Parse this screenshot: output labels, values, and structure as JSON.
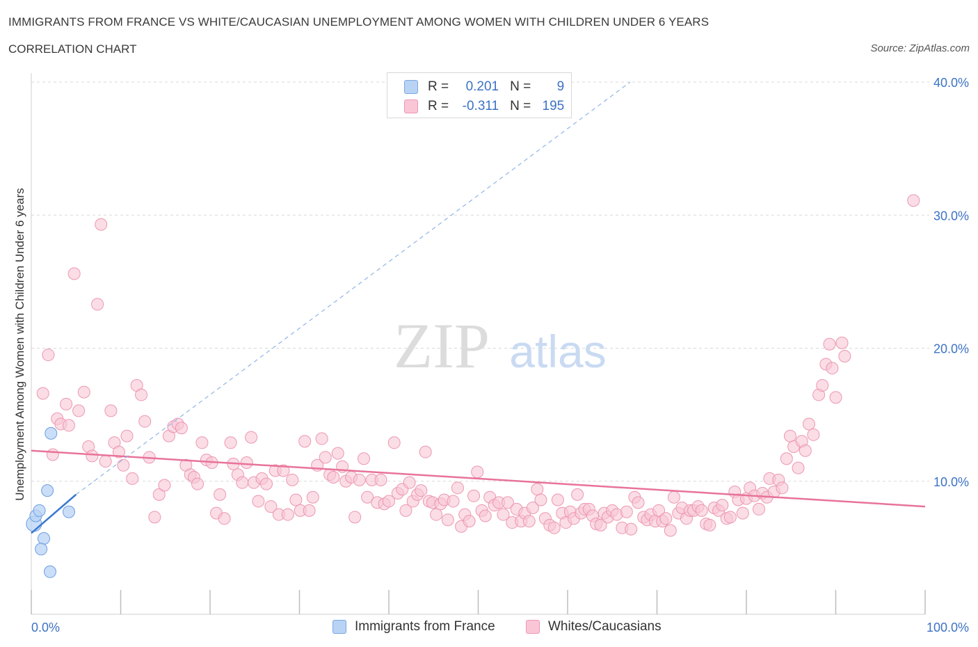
{
  "title": "IMMIGRANTS FROM FRANCE VS WHITE/CAUCASIAN UNEMPLOYMENT AMONG WOMEN WITH CHILDREN UNDER 6 YEARS",
  "subtitle": "CORRELATION CHART",
  "source": "Source: ZipAtlas.com",
  "watermark": {
    "zip": "ZIP",
    "atlas": "atlas"
  },
  "legend": {
    "rows": [
      {
        "r_label": "R =",
        "r_value": "0.201",
        "n_label": "N =",
        "n_value": "9"
      },
      {
        "r_label": "R =",
        "r_value": "-0.311",
        "n_label": "N =",
        "n_value": "195"
      }
    ]
  },
  "bottom_legend": {
    "items": [
      {
        "label": "Immigrants from France"
      },
      {
        "label": "Whites/Caucasians"
      }
    ]
  },
  "colors": {
    "blue_fill": "#b9d3f5",
    "blue_stroke": "#6a9ee0",
    "blue_line": "#3a78d0",
    "pink_fill": "#f9c6d6",
    "pink_stroke": "#ec97b2",
    "pink_line": "#e8739a",
    "grid": "#d9d9d9",
    "axis_label": "#3c72c4"
  },
  "chart_data": {
    "type": "scatter",
    "title": "IMMIGRANTS FROM FRANCE VS WHITE/CAUCASIAN UNEMPLOYMENT AMONG WOMEN WITH CHILDREN UNDER 6 YEARS",
    "xlabel": "",
    "ylabel": "Unemployment Among Women with Children Under 6 years",
    "xlim": [
      0,
      100
    ],
    "ylim": [
      0,
      40
    ],
    "x_tick_labels": [
      "0.0%",
      "100.0%"
    ],
    "y_ticks": [
      10,
      20,
      30,
      40
    ],
    "y_tick_labels": [
      "10.0%",
      "20.0%",
      "30.0%",
      "40.0%"
    ],
    "grid": true,
    "legend_position": "top-center",
    "series": [
      {
        "name": "Immigrants from France",
        "color": "#b9d3f5",
        "points": [
          [
            0.3,
            6.8
          ],
          [
            0.5,
            7.4
          ],
          [
            0.9,
            7.8
          ],
          [
            2.2,
            13.6
          ],
          [
            1.8,
            9.3
          ],
          [
            4.2,
            7.7
          ],
          [
            1.4,
            5.7
          ],
          [
            1.1,
            4.9
          ],
          [
            2.1,
            3.2
          ]
        ],
        "trend": {
          "x0": 0,
          "y0": 6.1,
          "x1": 5,
          "y1": 9.0,
          "style": "solid"
        },
        "trend_extension": {
          "x0": 5,
          "y0": 9.0,
          "x1": 67,
          "y1": 40.0,
          "style": "dashed"
        }
      },
      {
        "name": "Whites/Caucasians",
        "color": "#f9c6d6",
        "points": [
          [
            1.3,
            16.6
          ],
          [
            1.9,
            19.5
          ],
          [
            2.4,
            12.0
          ],
          [
            2.9,
            14.7
          ],
          [
            3.3,
            14.3
          ],
          [
            3.9,
            15.8
          ],
          [
            4.2,
            14.2
          ],
          [
            4.8,
            25.6
          ],
          [
            5.3,
            15.3
          ],
          [
            5.9,
            16.7
          ],
          [
            6.4,
            12.6
          ],
          [
            6.8,
            11.9
          ],
          [
            7.4,
            23.3
          ],
          [
            7.8,
            29.3
          ],
          [
            8.3,
            11.5
          ],
          [
            8.9,
            15.3
          ],
          [
            9.3,
            12.9
          ],
          [
            9.8,
            12.2
          ],
          [
            10.3,
            11.2
          ],
          [
            10.7,
            13.4
          ],
          [
            11.3,
            10.2
          ],
          [
            11.8,
            17.2
          ],
          [
            12.3,
            16.5
          ],
          [
            12.7,
            14.5
          ],
          [
            13.2,
            11.8
          ],
          [
            13.8,
            7.3
          ],
          [
            14.3,
            9.0
          ],
          [
            14.9,
            9.7
          ],
          [
            15.4,
            13.4
          ],
          [
            15.9,
            14.1
          ],
          [
            16.4,
            14.3
          ],
          [
            16.8,
            14.0
          ],
          [
            17.3,
            11.2
          ],
          [
            17.8,
            10.5
          ],
          [
            18.2,
            10.3
          ],
          [
            18.6,
            9.8
          ],
          [
            19.1,
            12.9
          ],
          [
            19.6,
            11.6
          ],
          [
            20.2,
            11.4
          ],
          [
            20.7,
            7.6
          ],
          [
            21.1,
            9.0
          ],
          [
            21.6,
            7.2
          ],
          [
            22.3,
            12.9
          ],
          [
            22.6,
            11.3
          ],
          [
            23.1,
            10.5
          ],
          [
            23.6,
            9.9
          ],
          [
            24.1,
            11.4
          ],
          [
            24.6,
            13.3
          ],
          [
            24.9,
            9.9
          ],
          [
            25.4,
            8.5
          ],
          [
            25.8,
            10.2
          ],
          [
            26.3,
            9.8
          ],
          [
            26.8,
            8.1
          ],
          [
            27.3,
            10.8
          ],
          [
            27.7,
            7.5
          ],
          [
            28.2,
            10.8
          ],
          [
            28.7,
            7.5
          ],
          [
            29.2,
            10.1
          ],
          [
            29.6,
            8.6
          ],
          [
            30.1,
            7.8
          ],
          [
            30.6,
            13.0
          ],
          [
            31.1,
            7.8
          ],
          [
            31.5,
            8.8
          ],
          [
            32.0,
            11.2
          ],
          [
            32.5,
            13.2
          ],
          [
            32.9,
            11.8
          ],
          [
            33.4,
            10.5
          ],
          [
            33.8,
            10.3
          ],
          [
            34.3,
            12.1
          ],
          [
            34.8,
            11.1
          ],
          [
            35.2,
            10.0
          ],
          [
            35.8,
            10.3
          ],
          [
            36.2,
            7.3
          ],
          [
            36.7,
            10.1
          ],
          [
            37.2,
            11.7
          ],
          [
            37.6,
            8.8
          ],
          [
            38.1,
            10.1
          ],
          [
            38.7,
            8.4
          ],
          [
            39.1,
            10.1
          ],
          [
            39.5,
            8.3
          ],
          [
            40.0,
            8.5
          ],
          [
            40.6,
            12.9
          ],
          [
            41.0,
            9.1
          ],
          [
            41.5,
            9.4
          ],
          [
            41.9,
            7.8
          ],
          [
            42.3,
            9.9
          ],
          [
            42.7,
            8.5
          ],
          [
            43.2,
            9.0
          ],
          [
            43.6,
            9.3
          ],
          [
            44.1,
            12.2
          ],
          [
            44.5,
            8.5
          ],
          [
            44.9,
            8.4
          ],
          [
            45.3,
            7.5
          ],
          [
            45.8,
            8.3
          ],
          [
            46.2,
            8.6
          ],
          [
            46.6,
            7.1
          ],
          [
            47.2,
            8.5
          ],
          [
            47.7,
            9.5
          ],
          [
            48.1,
            6.6
          ],
          [
            48.5,
            7.5
          ],
          [
            49.0,
            7.0
          ],
          [
            49.5,
            8.9
          ],
          [
            49.9,
            10.7
          ],
          [
            50.4,
            7.8
          ],
          [
            50.8,
            7.4
          ],
          [
            51.3,
            8.8
          ],
          [
            51.8,
            8.2
          ],
          [
            52.3,
            8.4
          ],
          [
            52.8,
            7.5
          ],
          [
            53.3,
            8.4
          ],
          [
            53.8,
            6.9
          ],
          [
            54.3,
            7.9
          ],
          [
            54.8,
            7.0
          ],
          [
            55.2,
            7.6
          ],
          [
            55.7,
            7.0
          ],
          [
            56.1,
            8.0
          ],
          [
            56.6,
            9.4
          ],
          [
            57.0,
            8.6
          ],
          [
            57.5,
            7.2
          ],
          [
            58.0,
            6.7
          ],
          [
            58.5,
            6.5
          ],
          [
            58.9,
            8.6
          ],
          [
            59.4,
            7.6
          ],
          [
            59.8,
            6.9
          ],
          [
            60.3,
            7.7
          ],
          [
            60.7,
            7.2
          ],
          [
            61.1,
            9.0
          ],
          [
            61.5,
            7.6
          ],
          [
            61.9,
            7.9
          ],
          [
            62.4,
            7.9
          ],
          [
            62.8,
            7.4
          ],
          [
            63.2,
            6.8
          ],
          [
            63.7,
            6.7
          ],
          [
            64.1,
            7.6
          ],
          [
            64.5,
            7.3
          ],
          [
            65.0,
            7.8
          ],
          [
            65.5,
            7.5
          ],
          [
            66.1,
            6.5
          ],
          [
            66.6,
            7.7
          ],
          [
            67.1,
            6.4
          ],
          [
            67.5,
            8.8
          ],
          [
            67.9,
            8.4
          ],
          [
            68.5,
            7.3
          ],
          [
            68.9,
            7.1
          ],
          [
            69.3,
            7.5
          ],
          [
            69.8,
            7.0
          ],
          [
            70.2,
            7.8
          ],
          [
            70.6,
            7.0
          ],
          [
            71.0,
            7.2
          ],
          [
            71.5,
            6.3
          ],
          [
            71.9,
            8.8
          ],
          [
            72.4,
            7.6
          ],
          [
            72.8,
            8.0
          ],
          [
            73.3,
            7.2
          ],
          [
            73.7,
            7.8
          ],
          [
            74.1,
            7.8
          ],
          [
            74.6,
            8.1
          ],
          [
            75.0,
            7.8
          ],
          [
            75.5,
            6.8
          ],
          [
            75.9,
            6.7
          ],
          [
            76.4,
            8.0
          ],
          [
            76.9,
            7.8
          ],
          [
            77.3,
            8.2
          ],
          [
            77.8,
            7.2
          ],
          [
            78.2,
            7.3
          ],
          [
            78.7,
            9.2
          ],
          [
            79.1,
            8.6
          ],
          [
            79.6,
            7.6
          ],
          [
            80.0,
            8.7
          ],
          [
            80.4,
            9.5
          ],
          [
            80.9,
            8.9
          ],
          [
            81.4,
            7.9
          ],
          [
            81.8,
            9.1
          ],
          [
            82.3,
            8.8
          ],
          [
            82.6,
            10.2
          ],
          [
            83.1,
            9.2
          ],
          [
            83.6,
            10.1
          ],
          [
            84.0,
            9.5
          ],
          [
            84.5,
            11.7
          ],
          [
            84.9,
            13.4
          ],
          [
            85.3,
            12.6
          ],
          [
            85.8,
            11.0
          ],
          [
            86.2,
            13.0
          ],
          [
            86.6,
            12.3
          ],
          [
            87.0,
            14.3
          ],
          [
            87.5,
            13.5
          ],
          [
            88.1,
            16.5
          ],
          [
            88.5,
            17.2
          ],
          [
            88.9,
            18.8
          ],
          [
            89.3,
            20.3
          ],
          [
            89.6,
            18.5
          ],
          [
            90.0,
            16.3
          ],
          [
            90.7,
            20.4
          ],
          [
            91.0,
            19.4
          ],
          [
            98.7,
            31.1
          ]
        ],
        "trend": {
          "x0": 0,
          "y0": 12.3,
          "x1": 100,
          "y1": 8.1,
          "style": "solid"
        }
      }
    ]
  }
}
